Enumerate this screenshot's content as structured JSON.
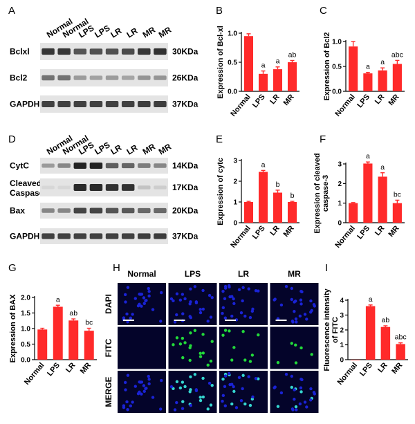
{
  "panels": {
    "A": "A",
    "B": "B",
    "C": "C",
    "D": "D",
    "E": "E",
    "F": "F",
    "G": "G",
    "H": "H",
    "I": "I"
  },
  "blot_a": {
    "lanes": [
      "Normal",
      "Normal",
      "LPS",
      "LPS",
      "LR",
      "LR",
      "MR",
      "MR"
    ],
    "rows": [
      {
        "label": "Bclxl",
        "kda": "30KDa",
        "intensity": [
          0.85,
          0.85,
          0.7,
          0.72,
          0.72,
          0.75,
          0.85,
          0.88
        ]
      },
      {
        "label": "Bcl2",
        "kda": "26KDa",
        "intensity": [
          0.55,
          0.55,
          0.35,
          0.32,
          0.35,
          0.3,
          0.38,
          0.38
        ]
      },
      {
        "label": "GAPDH",
        "kda": "37KDa",
        "intensity": [
          0.8,
          0.8,
          0.8,
          0.8,
          0.8,
          0.8,
          0.82,
          0.82
        ]
      }
    ]
  },
  "blot_d": {
    "lanes": [
      "Normal",
      "Normal",
      "LPS",
      "LPS",
      "LR",
      "LR",
      "MR",
      "MR"
    ],
    "rows": [
      {
        "label": "CytC",
        "kda": "14KDa",
        "intensity": [
          0.35,
          0.45,
          0.95,
          0.95,
          0.65,
          0.62,
          0.5,
          0.45
        ]
      },
      {
        "label": "Cleaved Caspase3",
        "label_lines": [
          "Cleaved",
          "Caspase3"
        ],
        "kda": "17KDa",
        "intensity": [
          0.05,
          0.05,
          0.92,
          0.92,
          0.88,
          0.88,
          0.15,
          0.1
        ]
      },
      {
        "label": "Bax",
        "kda": "20KDa",
        "intensity": [
          0.45,
          0.45,
          0.78,
          0.78,
          0.7,
          0.68,
          0.6,
          0.6
        ]
      },
      {
        "label": "GAPDH",
        "kda": "37KDa",
        "intensity": [
          0.8,
          0.8,
          0.8,
          0.8,
          0.8,
          0.8,
          0.82,
          0.82
        ]
      }
    ]
  },
  "microscopy": {
    "columns": [
      "Normal",
      "LPS",
      "LR",
      "MR"
    ],
    "rows": [
      "DAPI",
      "FITC",
      "MERGE"
    ],
    "colors": {
      "dapi": "#1a23d6",
      "fitc": "#22d93a",
      "merge": "#35d6d0",
      "background": "#04042a"
    }
  },
  "chart_data": [
    {
      "panel": "B",
      "type": "bar",
      "categories": [
        "Normal",
        "LPS",
        "LR",
        "MR"
      ],
      "values": [
        0.95,
        0.3,
        0.38,
        0.5
      ],
      "errors": [
        0.04,
        0.05,
        0.04,
        0.03
      ],
      "sig": [
        "",
        "a",
        "a",
        "ab"
      ],
      "ylabel": "Expression of Bcl-xl",
      "ylim": [
        0,
        1.0
      ],
      "yticks": [
        "0.0",
        "0.5",
        "1.0"
      ],
      "ytick_values": [
        0,
        0.5,
        1.0
      ],
      "color": "#ff2a2a"
    },
    {
      "panel": "C",
      "type": "bar",
      "categories": [
        "Normal",
        "LPS",
        "LR",
        "MR"
      ],
      "values": [
        0.9,
        0.36,
        0.42,
        0.55
      ],
      "errors": [
        0.1,
        0.02,
        0.05,
        0.07
      ],
      "sig": [
        "",
        "a",
        "a",
        "abc"
      ],
      "ylabel": "Expression of Bcl2",
      "ylim": [
        0,
        1.0
      ],
      "yticks": [
        "0.0",
        "0.5",
        "1.0"
      ],
      "ytick_values": [
        0,
        0.5,
        1.0
      ],
      "color": "#ff2a2a"
    },
    {
      "panel": "E",
      "type": "bar",
      "categories": [
        "Normal",
        "LPS",
        "LR",
        "MR"
      ],
      "values": [
        1.0,
        2.45,
        1.45,
        1.0
      ],
      "errors": [
        0.03,
        0.07,
        0.12,
        0.03
      ],
      "sig": [
        "",
        "a",
        "b",
        "b"
      ],
      "ylabel": "Expression of cytc",
      "ylim": [
        0,
        3
      ],
      "yticks": [
        "0",
        "1",
        "2",
        "3"
      ],
      "ytick_values": [
        0,
        1,
        2,
        3
      ],
      "color": "#ff2a2a"
    },
    {
      "panel": "F",
      "type": "bar",
      "categories": [
        "Normal",
        "LPS",
        "LR",
        "MR"
      ],
      "values": [
        1.0,
        3.02,
        2.35,
        1.0
      ],
      "errors": [
        0.03,
        0.08,
        0.2,
        0.15
      ],
      "sig": [
        "",
        "a",
        "a",
        "bc"
      ],
      "ylabel_lines": [
        "Expression of cleaved",
        "caspase-3"
      ],
      "ylim": [
        0,
        3
      ],
      "yticks": [
        "0",
        "1",
        "2",
        "3"
      ],
      "ytick_values": [
        0,
        1,
        2,
        3
      ],
      "color": "#ff2a2a"
    },
    {
      "panel": "G",
      "type": "bar",
      "categories": [
        "Normal",
        "LPS",
        "LR",
        "MR"
      ],
      "values": [
        0.97,
        1.7,
        1.26,
        0.93
      ],
      "errors": [
        0.04,
        0.05,
        0.05,
        0.08
      ],
      "sig": [
        "",
        "a",
        "ab",
        "bc"
      ],
      "ylabel": "Expression of BAX",
      "ylim": [
        0,
        2.0
      ],
      "yticks": [
        "0.0",
        "0.5",
        "1.0",
        "1.5",
        "2.0"
      ],
      "ytick_values": [
        0,
        0.5,
        1.0,
        1.5,
        2.0
      ],
      "color": "#ff2a2a"
    },
    {
      "panel": "I",
      "type": "bar",
      "categories": [
        "Normal",
        "LPS",
        "LR",
        "MR"
      ],
      "values": [
        0.0,
        3.6,
        2.2,
        1.05
      ],
      "errors": [
        0.0,
        0.08,
        0.08,
        0.08
      ],
      "sig": [
        "",
        "a",
        "ab",
        "abc"
      ],
      "ylabel_lines": [
        "Fluorescence intensity",
        "of FITC"
      ],
      "ylim": [
        0,
        4
      ],
      "yticks": [
        "0",
        "1",
        "2",
        "3",
        "4"
      ],
      "ytick_values": [
        0,
        1,
        2,
        3,
        4
      ],
      "color": "#ff2a2a"
    }
  ]
}
